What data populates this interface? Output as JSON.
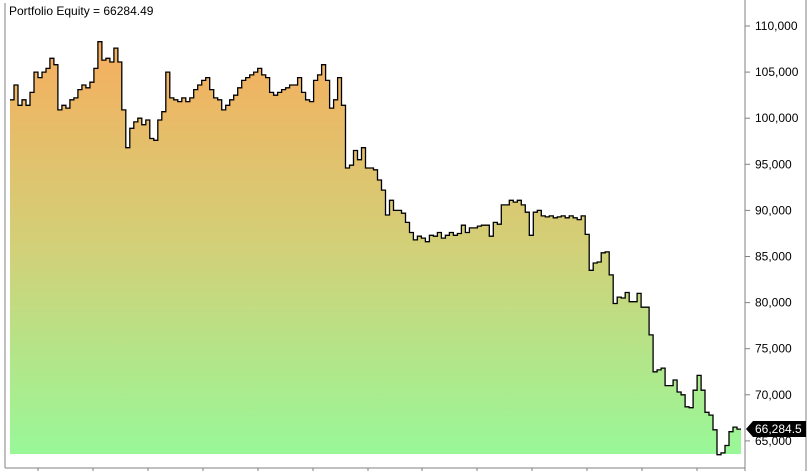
{
  "title": "Portfolio Equity = 66284.49",
  "chart_data": {
    "type": "area",
    "title": "Portfolio Equity = 66284.49",
    "xlabel": "",
    "ylabel": "",
    "ylim": [
      63500,
      112300
    ],
    "y_ticks": [
      65000,
      70000,
      75000,
      80000,
      85000,
      90000,
      95000,
      100000,
      105000,
      110000
    ],
    "y_tick_labels": [
      "65,000",
      "70,000",
      "75,000",
      "80,000",
      "85,000",
      "90,000",
      "95,000",
      "100,000",
      "105,000",
      "110,000"
    ],
    "last_value_label": "66,284.5",
    "grid": false,
    "step": true,
    "colors": {
      "fill_top": "#f6ae5e",
      "fill_mid": "#d2d078",
      "fill_bottom": "#98f898",
      "line": "#000000",
      "axis": "#808080"
    },
    "values": [
      102000,
      103600,
      101400,
      102000,
      101400,
      102800,
      105000,
      104400,
      105000,
      105400,
      106500,
      105800,
      100900,
      101400,
      101100,
      102000,
      102200,
      103100,
      103600,
      103300,
      103900,
      105400,
      108300,
      106300,
      106500,
      106100,
      107600,
      106100,
      100900,
      96800,
      98900,
      99600,
      100000,
      99300,
      99800,
      97800,
      97600,
      99800,
      100700,
      105000,
      102200,
      102000,
      101800,
      102200,
      101800,
      102200,
      103100,
      103600,
      104100,
      104400,
      103100,
      102200,
      102000,
      100900,
      101400,
      102000,
      102500,
      103300,
      104100,
      104400,
      104700,
      105000,
      105400,
      104700,
      104400,
      102800,
      102500,
      102800,
      103100,
      103300,
      103600,
      103600,
      104400,
      102800,
      102000,
      101800,
      104100,
      104700,
      105800,
      104100,
      101100,
      102000,
      104400,
      101400,
      94600,
      94900,
      96500,
      95500,
      96800,
      94600,
      94600,
      94400,
      93300,
      92200,
      89500,
      91100,
      90000,
      90000,
      89700,
      88700,
      87600,
      86800,
      87200,
      87000,
      86600,
      87300,
      87200,
      87600,
      87000,
      87300,
      87600,
      87300,
      87500,
      88400,
      87600,
      88100,
      88100,
      88300,
      88400,
      88400,
      87200,
      88700,
      88500,
      90600,
      90600,
      91100,
      90900,
      91100,
      90600,
      89800,
      87300,
      89800,
      90000,
      89400,
      89300,
      89400,
      89200,
      89300,
      89400,
      89200,
      89400,
      89200,
      89000,
      89400,
      87400,
      83500,
      84300,
      84400,
      85400,
      85500,
      83000,
      79900,
      80600,
      80500,
      81100,
      80100,
      80100,
      81000,
      79500,
      79500,
      76500,
      72500,
      72700,
      72900,
      71000,
      71000,
      71600,
      70300,
      70000,
      68700,
      68600,
      70500,
      72100,
      70500,
      68100,
      67800,
      66200,
      63500,
      63700,
      64500,
      66000,
      66500,
      66284.49
    ]
  }
}
